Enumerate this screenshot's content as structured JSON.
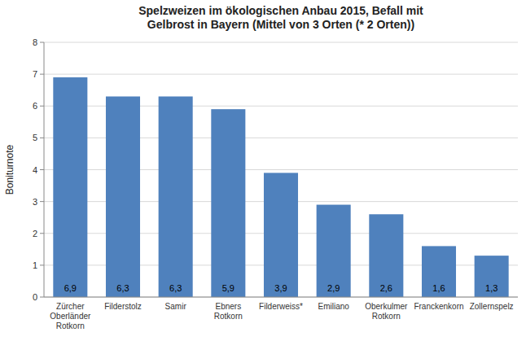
{
  "chart_data": {
    "type": "bar",
    "title": "Spelzweizen im ökologischen Anbau 2015, Befall mit\nGelbrost in Bayern (Mittel von 3 Orten (* 2 Orten))",
    "ylabel": "Boniturnote",
    "categories": [
      "Zürcher\nOberländer\nRotkorn",
      "Filderstolz",
      "Samir",
      "Ebners\nRotkorn",
      "Filderweiss*",
      "Emiliano",
      "Oberkulmer\nRotkorn",
      "Franckenkorn",
      "Zollernspelz"
    ],
    "values": [
      6.9,
      6.3,
      6.3,
      5.9,
      3.9,
      2.9,
      2.6,
      1.6,
      1.3
    ],
    "value_labels": [
      "6,9",
      "6,3",
      "6,3",
      "5,9",
      "3,9",
      "2,9",
      "2,6",
      "1,6",
      "1,3"
    ],
    "data_labels": true,
    "color": "#4f81bd",
    "ylim": [
      0,
      8
    ],
    "yticks": [
      0,
      1,
      2,
      3,
      4,
      5,
      6,
      7,
      8
    ],
    "grid": true
  }
}
